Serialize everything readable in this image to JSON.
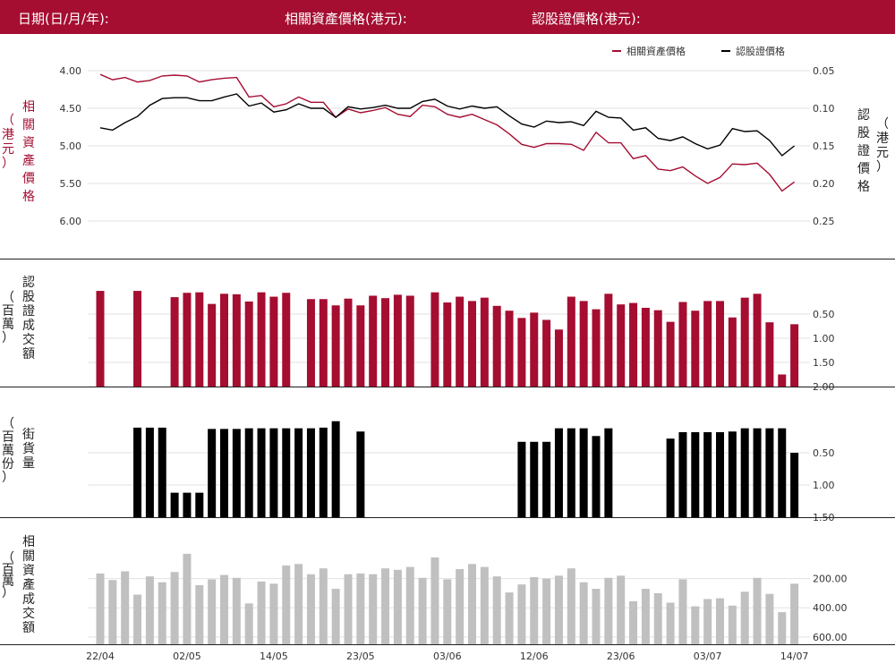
{
  "header": {
    "date_label": "日期(日/月/年):",
    "underlying_label": "相關資產價格(港元):",
    "warrant_label": "認股證價格(港元):"
  },
  "colors": {
    "header_bg": "#a50d31",
    "underlying": "#a50d31",
    "warrant": "#000000",
    "turnover_underlying": "#c0c0c0"
  },
  "chart_data": [
    {
      "type": "line",
      "legend_position": "top-right",
      "grid": true,
      "x_ticks": [
        "22/04",
        "02/05",
        "14/05",
        "23/05",
        "03/06",
        "12/06",
        "23/06",
        "03/07",
        "14/07"
      ],
      "x_tick_index": [
        0,
        7,
        14,
        21,
        28,
        35,
        42,
        49,
        56
      ],
      "left_axis": {
        "label": "相關資產價格",
        "unit": "（港元）",
        "ticks": [
          "6.00",
          "5.50",
          "5.00",
          "4.50",
          "4.00"
        ],
        "ylim": [
          3.9,
          6.0
        ]
      },
      "right_axis": {
        "label": "認股證價格",
        "unit": "（港元）",
        "ticks": [
          "0.25",
          "0.20",
          "0.15",
          "0.10",
          "0.05"
        ],
        "ylim": [
          0.04,
          0.25
        ]
      },
      "series": [
        {
          "name": "相關資產價格",
          "axis": "left",
          "values": [
            4.05,
            4.12,
            4.09,
            4.15,
            4.13,
            4.07,
            4.06,
            4.07,
            4.15,
            4.12,
            4.1,
            4.09,
            4.35,
            4.33,
            4.48,
            4.44,
            4.35,
            4.42,
            4.42,
            4.62,
            4.51,
            4.56,
            4.53,
            4.49,
            4.58,
            4.61,
            4.46,
            4.48,
            4.58,
            4.62,
            4.58,
            4.65,
            4.72,
            4.84,
            4.98,
            5.02,
            4.97,
            4.97,
            4.98,
            5.06,
            4.82,
            4.96,
            4.96,
            5.17,
            5.13,
            5.31,
            5.33,
            5.28,
            5.4,
            5.5,
            5.42,
            5.24,
            5.25,
            5.23,
            5.38,
            5.6,
            5.48
          ]
        },
        {
          "name": "認股證價格",
          "axis": "right",
          "values": [
            0.126,
            0.129,
            0.119,
            0.111,
            0.096,
            0.087,
            0.086,
            0.086,
            0.09,
            0.09,
            0.085,
            0.081,
            0.097,
            0.093,
            0.105,
            0.102,
            0.094,
            0.1,
            0.1,
            0.112,
            0.098,
            0.101,
            0.099,
            0.096,
            0.1,
            0.1,
            0.091,
            0.088,
            0.097,
            0.101,
            0.097,
            0.1,
            0.098,
            0.11,
            0.121,
            0.125,
            0.117,
            0.119,
            0.118,
            0.123,
            0.104,
            0.112,
            0.113,
            0.129,
            0.126,
            0.14,
            0.143,
            0.138,
            0.147,
            0.154,
            0.149,
            0.127,
            0.131,
            0.13,
            0.143,
            0.163,
            0.15
          ]
        }
      ]
    },
    {
      "type": "bar",
      "ylabel": "認股證成交額",
      "yunit": "（百萬）",
      "ticks": [
        "2.00",
        "1.50",
        "1.00",
        "0.50"
      ],
      "ylim": [
        0,
        2.0
      ],
      "values": [
        0.02,
        0,
        0,
        0.02,
        0,
        0,
        0.15,
        0.06,
        0.05,
        0.29,
        0.08,
        0.09,
        0.24,
        0.05,
        0.14,
        0.06,
        0,
        0.19,
        0.19,
        0.32,
        0.18,
        0.32,
        0.12,
        0.17,
        0.1,
        0.12,
        0,
        0.05,
        0.26,
        0.14,
        0.23,
        0.16,
        0.33,
        0.43,
        0.58,
        0.47,
        0.62,
        0.82,
        0.14,
        0.23,
        0.4,
        0.08,
        0.3,
        0.27,
        0.37,
        0.42,
        0.66,
        0.25,
        0.43,
        0.23,
        0.23,
        0.57,
        0.16,
        0.08,
        0.67,
        1.75,
        0.71
      ]
    },
    {
      "type": "bar",
      "ylabel": "街貨量",
      "yunit": "（百萬份）",
      "ticks": [
        "1.50",
        "1.00",
        "0.50"
      ],
      "ylim": [
        0,
        1.5
      ],
      "values": [
        0,
        0,
        0,
        0.11,
        0.11,
        0.11,
        1.12,
        1.12,
        1.12,
        0.13,
        0.13,
        0.13,
        0.12,
        0.12,
        0.12,
        0.12,
        0.12,
        0.12,
        0.11,
        0.01,
        0,
        0.17,
        0,
        0,
        0,
        0,
        0,
        0,
        0,
        0,
        0,
        0,
        0,
        0,
        0.33,
        0.33,
        0.33,
        0.12,
        0.12,
        0.12,
        0.24,
        0.12,
        0,
        0,
        0,
        0,
        0.28,
        0.18,
        0.18,
        0.18,
        0.18,
        0.17,
        0.12,
        0.12,
        0.12,
        0.12,
        0.5
      ]
    },
    {
      "type": "bar",
      "ylabel": "相關資產成交額",
      "yunit": "（百萬）",
      "ticks": [
        "600.00",
        "400.00",
        "200.00"
      ],
      "ylim": [
        0,
        650
      ],
      "values": [
        165,
        210,
        150,
        310,
        185,
        225,
        155,
        30,
        245,
        205,
        175,
        195,
        370,
        220,
        235,
        110,
        100,
        170,
        130,
        270,
        170,
        165,
        170,
        130,
        140,
        120,
        195,
        55,
        205,
        135,
        100,
        120,
        185,
        295,
        240,
        190,
        200,
        180,
        130,
        225,
        270,
        195,
        180,
        355,
        270,
        300,
        365,
        205,
        390,
        340,
        335,
        385,
        290,
        195,
        305,
        430,
        235
      ]
    }
  ]
}
